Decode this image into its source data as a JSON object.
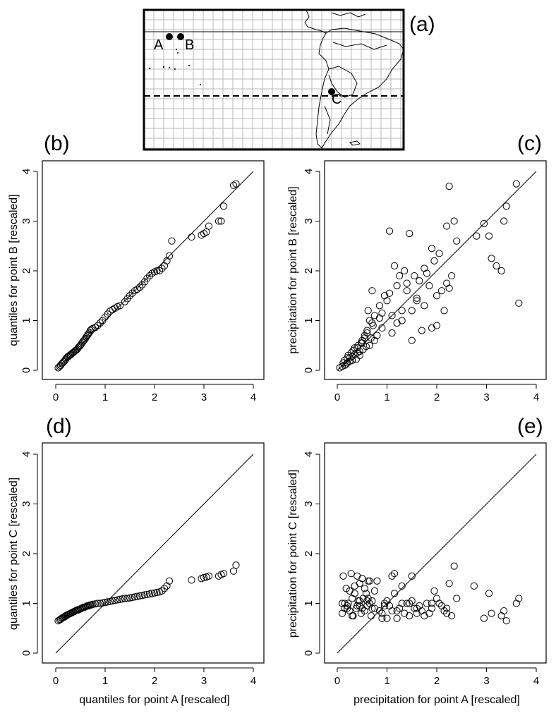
{
  "figure": {
    "panel_labels": {
      "a": "(a)",
      "b": "(b)",
      "c": "(c)",
      "d": "(d)",
      "e": "(e)"
    }
  },
  "map": {
    "point_labels": {
      "A": "A",
      "B": "B",
      "C": "C"
    }
  },
  "chart_data": [
    {
      "id": "b",
      "type": "scatter",
      "xlabel": "",
      "ylabel": "quantiles for point B [rescaled]",
      "xlim": [
        0,
        4
      ],
      "ylim": [
        0,
        4
      ],
      "xticks": [
        "0",
        "1",
        "2",
        "3",
        "4"
      ],
      "yticks": [
        "0",
        "1",
        "2",
        "3",
        "4"
      ],
      "reference_line": [
        [
          0,
          0
        ],
        [
          4,
          4
        ]
      ],
      "x": [
        0.05,
        0.08,
        0.1,
        0.12,
        0.14,
        0.16,
        0.18,
        0.2,
        0.22,
        0.24,
        0.26,
        0.28,
        0.3,
        0.32,
        0.34,
        0.36,
        0.38,
        0.4,
        0.42,
        0.44,
        0.46,
        0.48,
        0.5,
        0.52,
        0.54,
        0.56,
        0.58,
        0.6,
        0.62,
        0.64,
        0.66,
        0.68,
        0.7,
        0.72,
        0.75,
        0.8,
        0.85,
        0.9,
        0.95,
        1.0,
        1.05,
        1.1,
        1.15,
        1.2,
        1.25,
        1.3,
        1.4,
        1.45,
        1.5,
        1.55,
        1.6,
        1.65,
        1.7,
        1.75,
        1.8,
        1.85,
        1.9,
        1.95,
        2.0,
        2.05,
        2.1,
        2.15,
        2.2,
        2.25,
        2.3,
        2.35,
        2.75,
        2.95,
        3.0,
        3.05,
        3.1,
        3.3,
        3.35,
        3.4,
        3.6,
        3.65
      ],
      "y": [
        0.05,
        0.08,
        0.1,
        0.13,
        0.15,
        0.17,
        0.19,
        0.22,
        0.25,
        0.27,
        0.28,
        0.3,
        0.31,
        0.33,
        0.35,
        0.36,
        0.38,
        0.4,
        0.41,
        0.43,
        0.46,
        0.48,
        0.5,
        0.53,
        0.56,
        0.59,
        0.61,
        0.64,
        0.67,
        0.7,
        0.73,
        0.76,
        0.8,
        0.82,
        0.84,
        0.86,
        0.9,
        0.95,
        1.0,
        1.07,
        1.13,
        1.19,
        1.22,
        1.25,
        1.28,
        1.3,
        1.38,
        1.44,
        1.5,
        1.55,
        1.6,
        1.63,
        1.67,
        1.72,
        1.78,
        1.85,
        1.9,
        1.95,
        1.98,
        2.0,
        2.0,
        2.05,
        2.1,
        2.2,
        2.3,
        2.6,
        2.68,
        2.72,
        2.75,
        2.78,
        2.9,
        3.0,
        3.0,
        3.3,
        3.72,
        3.75
      ]
    },
    {
      "id": "c",
      "type": "scatter",
      "xlabel": "",
      "ylabel": "precipitation for point B [rescaled]",
      "xlim": [
        0,
        4
      ],
      "ylim": [
        0,
        4
      ],
      "xticks": [
        "0",
        "1",
        "2",
        "3",
        "4"
      ],
      "yticks": [
        "0",
        "1",
        "2",
        "3",
        "4"
      ],
      "reference_line": [
        [
          0,
          0
        ],
        [
          4,
          4
        ]
      ],
      "x": [
        0.05,
        0.1,
        0.12,
        0.15,
        0.18,
        0.2,
        0.22,
        0.25,
        0.28,
        0.3,
        0.32,
        0.35,
        0.38,
        0.4,
        0.42,
        0.45,
        0.48,
        0.5,
        0.52,
        0.55,
        0.58,
        0.6,
        0.62,
        0.65,
        0.68,
        0.7,
        0.72,
        0.75,
        0.8,
        0.85,
        0.9,
        0.95,
        1.0,
        1.05,
        1.1,
        1.15,
        1.2,
        1.25,
        1.3,
        1.35,
        1.4,
        1.45,
        1.5,
        1.55,
        1.6,
        1.65,
        1.7,
        1.75,
        1.8,
        1.85,
        1.9,
        1.95,
        2.0,
        2.05,
        2.1,
        2.15,
        2.2,
        2.25,
        2.3,
        2.35,
        2.4,
        2.8,
        2.95,
        3.05,
        3.1,
        3.3,
        3.35,
        3.6,
        3.65,
        0.2,
        0.3,
        0.4,
        0.5,
        0.6,
        0.7,
        0.85,
        1.05,
        1.2,
        1.4,
        1.5,
        1.75,
        2.0,
        2.25,
        3.2,
        3.4,
        0.15,
        0.25,
        0.35,
        0.45,
        0.55,
        0.65,
        0.75,
        0.9,
        1.1,
        1.3,
        1.6,
        1.9,
        2.2
      ],
      "y": [
        0.05,
        0.08,
        0.15,
        0.2,
        0.12,
        0.25,
        0.3,
        0.18,
        0.35,
        0.28,
        0.4,
        0.32,
        0.22,
        0.45,
        0.5,
        0.38,
        0.55,
        0.6,
        0.42,
        0.7,
        0.48,
        0.8,
        1.2,
        1.0,
        0.65,
        1.6,
        0.9,
        1.1,
        0.7,
        1.3,
        0.85,
        1.5,
        1.4,
        2.8,
        1.1,
        2.1,
        1.7,
        1.9,
        1.2,
        2.0,
        1.6,
        2.75,
        0.6,
        1.9,
        1.4,
        1.8,
        0.8,
        2.05,
        1.95,
        1.7,
        0.85,
        2.2,
        1.5,
        2.35,
        1.6,
        1.2,
        2.9,
        3.7,
        1.9,
        3.0,
        2.6,
        2.7,
        2.95,
        2.7,
        2.25,
        2.0,
        3.0,
        3.75,
        1.35,
        0.15,
        0.2,
        0.35,
        0.55,
        0.75,
        0.95,
        1.05,
        1.55,
        0.95,
        1.75,
        1.2,
        1.3,
        0.9,
        1.65,
        2.1,
        3.3,
        0.1,
        0.25,
        0.45,
        0.3,
        0.65,
        0.5,
        0.6,
        1.15,
        0.75,
        1.0,
        1.45,
        2.45,
        1.75
      ]
    },
    {
      "id": "d",
      "type": "scatter",
      "xlabel": "quantiles for point A [rescaled]",
      "ylabel": "quantiles for point C [rescaled]",
      "xlim": [
        0,
        4
      ],
      "ylim": [
        0,
        4
      ],
      "xticks": [
        "0",
        "1",
        "2",
        "3",
        "4"
      ],
      "yticks": [
        "0",
        "1",
        "2",
        "3",
        "4"
      ],
      "reference_line": [
        [
          0,
          0
        ],
        [
          4,
          4
        ]
      ],
      "x": [
        0.05,
        0.08,
        0.1,
        0.12,
        0.14,
        0.16,
        0.18,
        0.2,
        0.22,
        0.24,
        0.26,
        0.28,
        0.3,
        0.32,
        0.34,
        0.36,
        0.38,
        0.4,
        0.42,
        0.44,
        0.46,
        0.48,
        0.5,
        0.52,
        0.54,
        0.56,
        0.58,
        0.6,
        0.62,
        0.64,
        0.66,
        0.68,
        0.7,
        0.72,
        0.75,
        0.8,
        0.85,
        0.9,
        0.95,
        1.0,
        1.05,
        1.1,
        1.15,
        1.2,
        1.25,
        1.3,
        1.35,
        1.4,
        1.45,
        1.5,
        1.55,
        1.6,
        1.65,
        1.7,
        1.75,
        1.8,
        1.85,
        1.9,
        1.95,
        2.0,
        2.05,
        2.1,
        2.15,
        2.2,
        2.25,
        2.3,
        2.75,
        2.95,
        3.0,
        3.05,
        3.1,
        3.3,
        3.35,
        3.4,
        3.6,
        3.65
      ],
      "y": [
        0.65,
        0.67,
        0.68,
        0.7,
        0.71,
        0.72,
        0.73,
        0.75,
        0.76,
        0.77,
        0.78,
        0.79,
        0.8,
        0.81,
        0.82,
        0.83,
        0.84,
        0.85,
        0.86,
        0.87,
        0.87,
        0.88,
        0.89,
        0.9,
        0.91,
        0.92,
        0.92,
        0.93,
        0.94,
        0.95,
        0.95,
        0.96,
        0.97,
        0.97,
        0.98,
        0.99,
        1.0,
        1.0,
        1.01,
        1.02,
        1.03,
        1.04,
        1.05,
        1.06,
        1.07,
        1.08,
        1.09,
        1.1,
        1.1,
        1.11,
        1.12,
        1.13,
        1.14,
        1.15,
        1.16,
        1.17,
        1.18,
        1.19,
        1.2,
        1.21,
        1.22,
        1.23,
        1.25,
        1.3,
        1.35,
        1.45,
        1.47,
        1.5,
        1.52,
        1.53,
        1.55,
        1.55,
        1.58,
        1.6,
        1.65,
        1.77
      ]
    },
    {
      "id": "e",
      "type": "scatter",
      "xlabel": "precipitation for point A [rescaled]",
      "ylabel": "precipitation for point C [rescaled]",
      "xlim": [
        0,
        4
      ],
      "ylim": [
        0,
        4
      ],
      "xticks": [
        "0",
        "1",
        "2",
        "3",
        "4"
      ],
      "yticks": [
        "0",
        "1",
        "2",
        "3",
        "4"
      ],
      "reference_line": [
        [
          0,
          0
        ],
        [
          4,
          4
        ]
      ],
      "x": [
        0.1,
        0.12,
        0.15,
        0.18,
        0.2,
        0.22,
        0.25,
        0.28,
        0.3,
        0.32,
        0.35,
        0.38,
        0.4,
        0.42,
        0.45,
        0.48,
        0.5,
        0.52,
        0.55,
        0.58,
        0.6,
        0.62,
        0.65,
        0.68,
        0.7,
        0.75,
        0.8,
        0.85,
        0.9,
        0.95,
        1.0,
        1.05,
        1.1,
        1.15,
        1.2,
        1.25,
        1.3,
        1.35,
        1.4,
        1.45,
        1.5,
        1.55,
        1.6,
        1.65,
        1.7,
        1.75,
        1.8,
        1.85,
        1.9,
        1.95,
        2.0,
        2.05,
        2.1,
        2.15,
        2.2,
        2.25,
        2.3,
        2.35,
        2.4,
        2.75,
        2.95,
        3.05,
        3.1,
        3.3,
        3.35,
        3.4,
        3.6,
        3.65,
        0.15,
        0.25,
        0.35,
        0.45,
        0.55,
        0.65,
        0.75,
        1.0,
        1.2,
        1.5,
        2.2,
        0.2,
        0.3,
        0.4,
        0.5,
        0.6,
        0.7,
        0.9,
        1.1,
        1.3,
        1.6,
        1.9,
        0.1,
        0.25,
        0.45,
        0.62,
        0.95,
        1.15,
        1.45
      ],
      "y": [
        0.8,
        1.55,
        0.9,
        1.3,
        0.95,
        1.0,
        0.85,
        1.6,
        1.1,
        0.75,
        1.2,
        0.9,
        1.55,
        1.05,
        0.95,
        0.8,
        1.5,
        1.1,
        0.85,
        1.2,
        0.95,
        1.45,
        1.0,
        0.75,
        1.05,
        0.9,
        1.45,
        0.85,
        0.8,
        1.0,
        0.7,
        0.95,
        1.55,
        1.6,
        0.85,
        0.9,
        1.35,
        0.8,
        1.0,
        0.75,
        1.05,
        0.9,
        0.8,
        0.95,
        0.85,
        0.75,
        1.0,
        0.8,
        0.9,
        1.25,
        1.1,
        1.0,
        0.95,
        0.85,
        0.9,
        1.4,
        0.75,
        1.75,
        1.1,
        1.35,
        0.7,
        1.2,
        0.8,
        0.75,
        0.85,
        0.65,
        1.0,
        1.1,
        1.0,
        1.25,
        1.35,
        1.4,
        1.3,
        1.45,
        1.25,
        1.05,
        0.7,
        1.55,
        0.8,
        0.9,
        0.75,
        0.95,
        0.9,
        1.05,
        0.9,
        0.7,
        0.85,
        1.0,
        0.9,
        1.0,
        1.0,
        0.85,
        1.05,
        1.1,
        0.95,
        1.2,
        1.0
      ]
    }
  ]
}
